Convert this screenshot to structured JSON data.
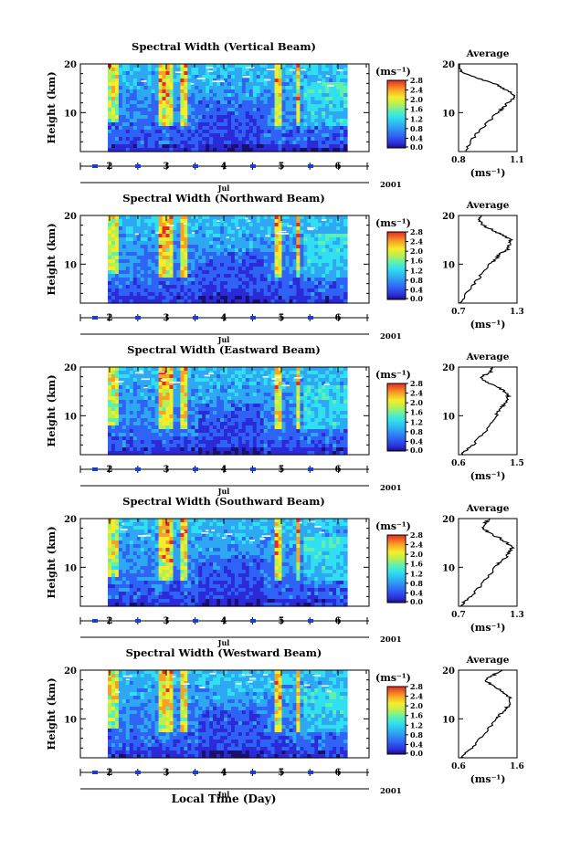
{
  "figure": {
    "xlabel": "Local Time (Day)",
    "colorbar_unit": "(ms⁻¹)",
    "profile_unit": "(ms⁻¹)",
    "profile_title": "Average",
    "month_label": "Jul",
    "year_label": "2001",
    "ylabel": "Height (km)"
  },
  "chart_data": [
    {
      "type": "heatmap",
      "title": "Spectral Width (Vertical Beam)",
      "xlabel": "Local Time (Day)",
      "ylabel": "Height (km)",
      "x_ticks": [
        "2",
        "3",
        "4",
        "5",
        "6"
      ],
      "y_ticks": [
        10,
        20
      ],
      "ylim": [
        2,
        20
      ],
      "colorbar": {
        "unit": "(ms⁻¹)",
        "ticks": [
          "0.0",
          "0.4",
          "0.8",
          "1.2",
          "1.6",
          "2.0",
          "2.4",
          "2.8"
        ]
      },
      "profile": {
        "title": "Average",
        "xlabel": "(ms⁻¹)",
        "xlim": [
          0.8,
          1.1
        ],
        "x_tick_labels": [
          "0.8",
          "1.1"
        ],
        "height": [
          2,
          4,
          6,
          8,
          10,
          11,
          12,
          13,
          14,
          15,
          16,
          17,
          18,
          19,
          20
        ],
        "value": [
          0.83,
          0.86,
          0.9,
          0.95,
          1.0,
          1.03,
          1.05,
          1.09,
          1.07,
          1.03,
          0.98,
          0.9,
          0.83,
          0.8,
          0.8
        ]
      }
    },
    {
      "type": "heatmap",
      "title": "Spectral Width (Northward Beam)",
      "xlabel": "Local Time (Day)",
      "ylabel": "Height (km)",
      "x_ticks": [
        "2",
        "3",
        "4",
        "5",
        "6"
      ],
      "y_ticks": [
        10,
        20
      ],
      "ylim": [
        2,
        20
      ],
      "colorbar": {
        "unit": "(ms⁻¹)",
        "ticks": [
          "0.0",
          "0.4",
          "0.8",
          "1.2",
          "1.6",
          "2.0",
          "2.4",
          "2.8"
        ]
      },
      "profile": {
        "title": "Average",
        "xlabel": "(ms⁻¹)",
        "xlim": [
          0.7,
          1.3
        ],
        "x_tick_labels": [
          "0.7",
          "1.3"
        ],
        "height": [
          2,
          4,
          6,
          8,
          10,
          11,
          12,
          13,
          14,
          15,
          16,
          17,
          18,
          19,
          20
        ],
        "value": [
          0.72,
          0.78,
          0.86,
          0.94,
          1.02,
          1.08,
          1.12,
          1.2,
          1.22,
          1.24,
          1.15,
          1.05,
          0.95,
          0.92,
          0.92
        ]
      }
    },
    {
      "type": "heatmap",
      "title": "Spectral Width (Eastward Beam)",
      "xlabel": "Local Time (Day)",
      "ylabel": "Height (km)",
      "x_ticks": [
        "2",
        "3",
        "4",
        "5",
        "6"
      ],
      "y_ticks": [
        10,
        20
      ],
      "ylim": [
        2,
        20
      ],
      "colorbar": {
        "unit": "(ms⁻¹)",
        "ticks": [
          "0.0",
          "0.4",
          "0.8",
          "1.2",
          "1.6",
          "2.0",
          "2.4",
          "2.8"
        ]
      },
      "profile": {
        "title": "Average",
        "xlabel": "(ms⁻¹)",
        "xlim": [
          0.6,
          1.5
        ],
        "x_tick_labels": [
          "0.6",
          "1.5"
        ],
        "height": [
          2,
          3,
          4,
          6,
          8,
          10,
          11,
          12,
          13,
          14,
          15,
          16,
          17,
          18,
          19,
          20
        ],
        "value": [
          0.65,
          0.72,
          0.82,
          0.96,
          1.08,
          1.18,
          1.22,
          1.28,
          1.33,
          1.37,
          1.3,
          1.2,
          1.0,
          0.95,
          1.1,
          1.12
        ]
      }
    },
    {
      "type": "heatmap",
      "title": "Spectral Width (Southward Beam)",
      "xlabel": "Local Time (Day)",
      "ylabel": "Height (km)",
      "x_ticks": [
        "2",
        "3",
        "4",
        "5",
        "6"
      ],
      "y_ticks": [
        10,
        20
      ],
      "ylim": [
        2,
        20
      ],
      "colorbar": {
        "unit": "(ms⁻¹)",
        "ticks": [
          "0.0",
          "0.4",
          "0.8",
          "1.2",
          "1.6",
          "2.0",
          "2.4",
          "2.8"
        ]
      },
      "profile": {
        "title": "Average",
        "xlabel": "(ms⁻¹)",
        "xlim": [
          0.7,
          1.3
        ],
        "x_tick_labels": [
          "0.7",
          "1.3"
        ],
        "height": [
          2,
          3,
          4,
          6,
          8,
          10,
          11,
          12,
          13,
          14,
          15,
          16,
          17,
          18,
          19,
          20
        ],
        "value": [
          0.73,
          0.76,
          0.82,
          0.92,
          1.0,
          1.08,
          1.12,
          1.18,
          1.22,
          1.25,
          1.2,
          1.12,
          1.02,
          0.95,
          0.97,
          1.02
        ]
      }
    },
    {
      "type": "heatmap",
      "title": "Spectral Width (Westward Beam)",
      "xlabel": "Local Time (Day)",
      "ylabel": "Height (km)",
      "x_ticks": [
        "2",
        "3",
        "4",
        "5",
        "6"
      ],
      "y_ticks": [
        10,
        20
      ],
      "ylim": [
        2,
        20
      ],
      "colorbar": {
        "unit": "(ms⁻¹)",
        "ticks": [
          "0.0",
          "0.4",
          "0.8",
          "1.2",
          "1.6",
          "2.0",
          "2.4",
          "2.8"
        ]
      },
      "profile": {
        "title": "Average",
        "xlabel": "(ms⁻¹)",
        "xlim": [
          0.6,
          1.6
        ],
        "x_tick_labels": [
          "0.6",
          "1.6"
        ],
        "height": [
          2,
          3,
          4,
          6,
          8,
          10,
          11,
          12,
          13,
          14,
          15,
          16,
          17,
          18,
          19,
          20
        ],
        "value": [
          0.66,
          0.72,
          0.82,
          0.98,
          1.12,
          1.25,
          1.32,
          1.4,
          1.48,
          1.5,
          1.42,
          1.3,
          1.15,
          1.05,
          1.2,
          1.35
        ]
      }
    }
  ]
}
